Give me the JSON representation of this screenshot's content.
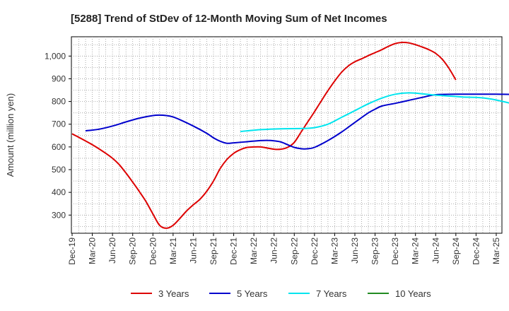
{
  "chart_data": {
    "type": "line",
    "title": "[5288]  Trend of StDev of 12-Month Moving Sum of Net Incomes",
    "xlabel": "",
    "ylabel": "Amount (million yen)",
    "ylim": [
      220,
      1085
    ],
    "y_ticks": [
      300,
      400,
      500,
      600,
      700,
      800,
      900,
      1000
    ],
    "y_tick_labels": [
      "300",
      "400",
      "500",
      "600",
      "700",
      "800",
      "900",
      "1,000"
    ],
    "x_tick_labels": [
      "Dec-19",
      "Mar-20",
      "Jun-20",
      "Sep-20",
      "Dec-20",
      "Mar-21",
      "Jun-21",
      "Sep-21",
      "Dec-21",
      "Mar-22",
      "Jun-22",
      "Sep-22",
      "Dec-22",
      "Mar-23",
      "Jun-23",
      "Sep-23",
      "Dec-23",
      "Mar-24",
      "Jun-24",
      "Sep-24",
      "Dec-24",
      "Mar-25"
    ],
    "grid": true,
    "legend_position": "bottom",
    "series": [
      {
        "name": "3 Years",
        "color": "#dd0000",
        "points": [
          [
            0,
            658
          ],
          [
            3,
            610
          ],
          [
            5,
            572
          ],
          [
            6,
            550
          ],
          [
            7,
            522
          ],
          [
            8,
            485
          ],
          [
            9,
            445
          ],
          [
            10,
            403
          ],
          [
            11,
            358
          ],
          [
            12,
            305
          ],
          [
            13,
            255
          ],
          [
            14,
            242
          ],
          [
            15,
            255
          ],
          [
            16,
            285
          ],
          [
            17,
            318
          ],
          [
            18,
            345
          ],
          [
            19,
            370
          ],
          [
            20,
            405
          ],
          [
            21,
            450
          ],
          [
            22,
            505
          ],
          [
            23,
            545
          ],
          [
            24,
            572
          ],
          [
            25,
            588
          ],
          [
            26,
            598
          ],
          [
            27,
            600
          ],
          [
            28,
            600
          ],
          [
            29,
            595
          ],
          [
            30,
            590
          ],
          [
            31,
            590
          ],
          [
            32,
            598
          ],
          [
            33,
            620
          ],
          [
            34,
            665
          ],
          [
            35,
            710
          ],
          [
            36,
            755
          ],
          [
            37,
            802
          ],
          [
            38,
            848
          ],
          [
            39,
            890
          ],
          [
            40,
            928
          ],
          [
            41,
            956
          ],
          [
            42,
            975
          ],
          [
            43,
            988
          ],
          [
            44,
            1002
          ],
          [
            45,
            1015
          ],
          [
            46,
            1028
          ],
          [
            47,
            1043
          ],
          [
            48,
            1055
          ],
          [
            49,
            1060
          ],
          [
            50,
            1058
          ],
          [
            51,
            1050
          ],
          [
            52,
            1040
          ],
          [
            53,
            1028
          ],
          [
            54,
            1012
          ],
          [
            55,
            985
          ],
          [
            56,
            945
          ],
          [
            57,
            895
          ]
        ]
      },
      {
        "name": "5 Years",
        "color": "#0000cc",
        "points": [
          [
            2,
            671
          ],
          [
            4,
            678
          ],
          [
            6,
            692
          ],
          [
            8,
            710
          ],
          [
            10,
            727
          ],
          [
            12,
            738
          ],
          [
            13,
            740
          ],
          [
            14,
            738
          ],
          [
            15,
            732
          ],
          [
            16,
            720
          ],
          [
            18,
            692
          ],
          [
            20,
            660
          ],
          [
            21,
            640
          ],
          [
            22,
            625
          ],
          [
            23,
            616
          ],
          [
            24,
            618
          ],
          [
            26,
            623
          ],
          [
            28,
            628
          ],
          [
            29,
            629
          ],
          [
            30,
            627
          ],
          [
            31,
            622
          ],
          [
            32,
            610
          ],
          [
            33,
            598
          ],
          [
            34,
            592
          ],
          [
            35,
            592
          ],
          [
            36,
            598
          ],
          [
            38,
            628
          ],
          [
            40,
            665
          ],
          [
            42,
            708
          ],
          [
            44,
            750
          ],
          [
            45,
            766
          ],
          [
            46,
            780
          ],
          [
            48,
            792
          ],
          [
            50,
            805
          ],
          [
            52,
            818
          ],
          [
            54,
            830
          ],
          [
            57,
            832
          ],
          [
            60,
            832
          ],
          [
            63,
            832
          ],
          [
            66,
            831
          ],
          [
            69,
            831
          ],
          [
            72,
            831
          ],
          [
            75,
            831
          ],
          [
            78,
            831
          ]
        ]
      },
      {
        "name": "7 Years",
        "color": "#00e5ee",
        "points": [
          [
            25,
            668
          ],
          [
            28,
            676
          ],
          [
            31,
            680
          ],
          [
            34,
            681
          ],
          [
            36,
            685
          ],
          [
            38,
            700
          ],
          [
            40,
            730
          ],
          [
            42,
            760
          ],
          [
            44,
            790
          ],
          [
            46,
            815
          ],
          [
            48,
            832
          ],
          [
            50,
            838
          ],
          [
            52,
            834
          ],
          [
            54,
            828
          ],
          [
            56,
            824
          ],
          [
            58,
            820
          ],
          [
            60,
            818
          ],
          [
            62,
            812
          ],
          [
            64,
            800
          ],
          [
            66,
            785
          ],
          [
            68,
            768
          ],
          [
            70,
            752
          ],
          [
            72,
            740
          ]
        ]
      },
      {
        "name": "10 Years",
        "color": "#228b22",
        "points": []
      }
    ]
  }
}
